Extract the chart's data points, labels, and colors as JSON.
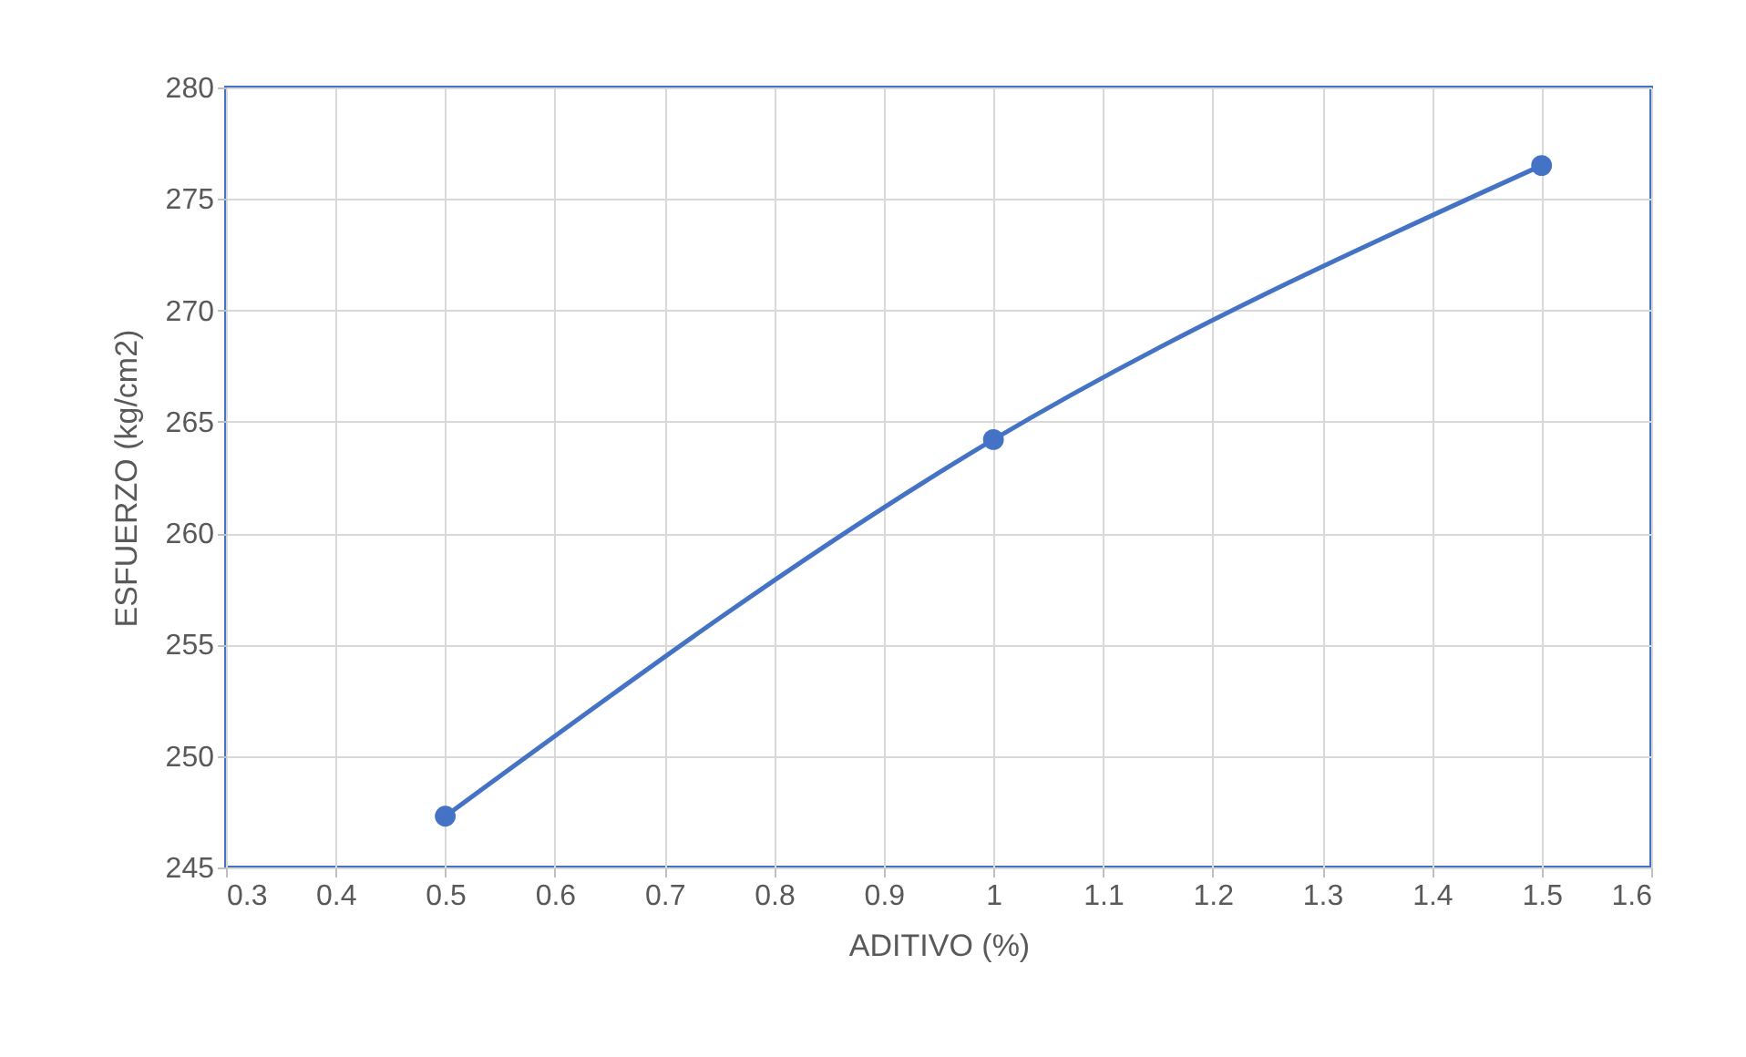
{
  "chart_data": {
    "type": "line",
    "xlabel": "ADITIVO (%)",
    "ylabel": "ESFUERZO (kg/cm2)",
    "x": [
      0.5,
      1,
      1.5
    ],
    "series": [
      {
        "color": "#4472c4",
        "values": [
          247.3,
          264.2,
          276.5
        ]
      }
    ],
    "xlim": [
      0.3,
      1.6
    ],
    "xticks": [
      0.3,
      0.4,
      0.5,
      0.6,
      0.7,
      0.8,
      0.9,
      1,
      1.1,
      1.2,
      1.3,
      1.4,
      1.5,
      1.6
    ],
    "ylim": [
      245,
      280
    ],
    "yticks": [
      245,
      250,
      255,
      260,
      265,
      270,
      275,
      280
    ],
    "grid": true,
    "marker": "circle",
    "line_style": "solid"
  }
}
